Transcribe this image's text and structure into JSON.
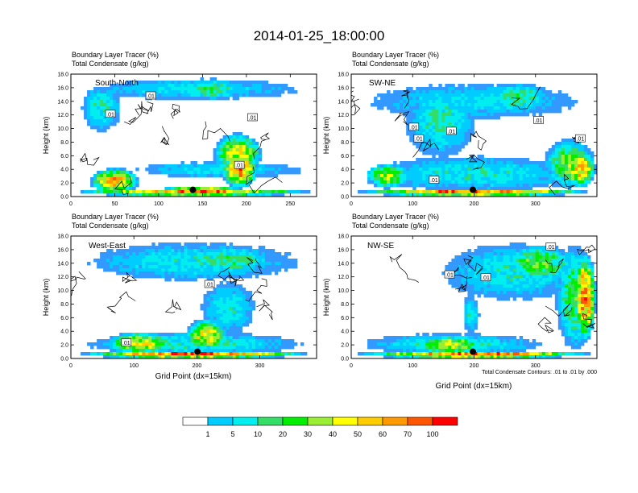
{
  "title": "2014-01-25_18:00:00",
  "colors": [
    "#ffffff",
    "#3399ff",
    "#00ccff",
    "#00eeee",
    "#33dd66",
    "#00ee00",
    "#99ee33",
    "#ffff00",
    "#ffcc00",
    "#ff9900",
    "#ff5500",
    "#ff0000"
  ],
  "contour_color": "#000000",
  "marker_color": "#000000",
  "chart_data": [
    {
      "type": "heatmap",
      "id": "south-north",
      "subtitle_1": "Boundary Layer Tracer   (%)",
      "subtitle_2": "Total Condensate   (g/kg)",
      "panel_label": "South-North",
      "ylabel": "Height (km)",
      "xlabel": "",
      "xlim": [
        0,
        280
      ],
      "ylim": [
        0,
        18
      ],
      "xticks": [
        "0",
        "50",
        "100",
        "150",
        "200",
        "250"
      ],
      "xtick_values": [
        0,
        50,
        100,
        150,
        200,
        250
      ],
      "yticks": [
        "0.0",
        "2.0",
        "4.0",
        "6.0",
        "8.0",
        "10.0",
        "12.0",
        "14.0",
        "16.0",
        "18.0"
      ],
      "contour_labels": [
        {
          "text": ".01",
          "x": 91,
          "y": 14.8
        },
        {
          "text": ".01",
          "x": 45,
          "y": 12.1
        },
        {
          "text": ".01",
          "x": 207,
          "y": 11.6
        },
        {
          "text": ".01",
          "x": 192,
          "y": 4.6
        }
      ],
      "marker": {
        "x": 139,
        "y": 1.0
      },
      "blobs": [
        {
          "x": 0,
          "y": 14,
          "w": 280,
          "h": 3.5,
          "v": 3.2
        },
        {
          "x": 110,
          "y": 14,
          "w": 95,
          "h": 3.5,
          "v": 4.6
        },
        {
          "x": 10,
          "y": 9,
          "w": 50,
          "h": 8,
          "v": 3.8
        },
        {
          "x": 60,
          "y": 2.5,
          "w": 220,
          "h": 2.8,
          "v": 3.4
        },
        {
          "x": 160,
          "y": 3,
          "w": 60,
          "h": 6.5,
          "v": 7.2
        },
        {
          "x": 170,
          "y": 1,
          "w": 45,
          "h": 6,
          "v": 9.2
        },
        {
          "x": 20,
          "y": 0.3,
          "w": 60,
          "h": 4,
          "v": 8.5
        },
        {
          "x": 0,
          "y": 0,
          "w": 280,
          "h": 1.2,
          "v": 9.6
        },
        {
          "x": 90,
          "y": 0,
          "w": 120,
          "h": 1.5,
          "v": 10.5
        }
      ]
    },
    {
      "type": "heatmap",
      "id": "sw-ne",
      "subtitle_1": "Boundary Layer Tracer   (%)",
      "subtitle_2": "Total Condensate   (g/kg)",
      "panel_label": "SW-NE",
      "ylabel": "Height (km)",
      "xlabel": "",
      "xlim": [
        0,
        400
      ],
      "ylim": [
        0,
        18
      ],
      "xticks": [
        "0",
        "100",
        "200",
        "300"
      ],
      "xtick_values": [
        0,
        100,
        200,
        300
      ],
      "yticks": [
        "0.0",
        "2.0",
        "4.0",
        "6.0",
        "8.0",
        "10.0",
        "12.0",
        "14.0",
        "16.0",
        "18.0"
      ],
      "contour_labels": [
        {
          "text": ".01",
          "x": 102,
          "y": 10.2
        },
        {
          "text": ".01",
          "x": 110,
          "y": 8.5
        },
        {
          "text": ".01",
          "x": 163,
          "y": 9.6
        },
        {
          "text": ".01",
          "x": 305,
          "y": 11.2
        },
        {
          "text": ".01",
          "x": 373,
          "y": 8.5
        },
        {
          "text": ".01",
          "x": 135,
          "y": 2.4
        }
      ],
      "marker": {
        "x": 198,
        "y": 1.0
      },
      "blobs": [
        {
          "x": 0,
          "y": 11,
          "w": 400,
          "h": 6,
          "v": 3.2
        },
        {
          "x": 80,
          "y": 5,
          "w": 130,
          "h": 12,
          "v": 4.0
        },
        {
          "x": 210,
          "y": 12,
          "w": 120,
          "h": 5,
          "v": 4.5
        },
        {
          "x": 0,
          "y": 0.3,
          "w": 400,
          "h": 6,
          "v": 3.6
        },
        {
          "x": 310,
          "y": 0.8,
          "w": 90,
          "h": 8,
          "v": 5.8
        },
        {
          "x": 345,
          "y": 1,
          "w": 55,
          "h": 6,
          "v": 8.4
        },
        {
          "x": 20,
          "y": 1,
          "w": 80,
          "h": 4,
          "v": 6.5
        },
        {
          "x": 0,
          "y": 0,
          "w": 400,
          "h": 1.2,
          "v": 10.2
        }
      ]
    },
    {
      "type": "heatmap",
      "id": "west-east",
      "subtitle_1": "Boundary Layer Tracer   (%)",
      "subtitle_2": "Total Condensate   (g/kg)",
      "panel_label": "West-East",
      "ylabel": "Height (km)",
      "xlabel": "Grid Point (dx=15km)",
      "xlim": [
        0,
        390
      ],
      "ylim": [
        0,
        18
      ],
      "xticks": [
        "0",
        "100",
        "200",
        "300"
      ],
      "xtick_values": [
        0,
        100,
        200,
        300
      ],
      "yticks": [
        "0.0",
        "2.0",
        "4.0",
        "6.0",
        "8.0",
        "10.0",
        "12.0",
        "14.0",
        "16.0",
        "18.0"
      ],
      "contour_labels": [
        {
          "text": ".01",
          "x": 220,
          "y": 10.9
        },
        {
          "text": ".01",
          "x": 88,
          "y": 2.3
        }
      ],
      "marker": {
        "x": 201,
        "y": 1.0
      },
      "blobs": [
        {
          "x": 0,
          "y": 11,
          "w": 390,
          "h": 6.5,
          "v": 3.4
        },
        {
          "x": 160,
          "y": 12,
          "w": 180,
          "h": 5,
          "v": 4.3
        },
        {
          "x": 200,
          "y": 3,
          "w": 100,
          "h": 9,
          "v": 3.6
        },
        {
          "x": 0,
          "y": 0.3,
          "w": 390,
          "h": 3.8,
          "v": 3.8
        },
        {
          "x": 50,
          "y": 0.5,
          "w": 120,
          "h": 3.5,
          "v": 7.4
        },
        {
          "x": 180,
          "y": 1,
          "w": 70,
          "h": 5,
          "v": 8.0
        },
        {
          "x": 0,
          "y": 0,
          "w": 390,
          "h": 1.2,
          "v": 10.2
        }
      ]
    },
    {
      "type": "heatmap",
      "id": "nw-se",
      "subtitle_1": "Boundary Layer Tracer   (%)",
      "subtitle_2": "Total Condensate   (g/kg)",
      "panel_label": "NW-SE",
      "ylabel": "Height (km)",
      "xlabel": "Grid Point (dx=15km)",
      "xlim": [
        0,
        400
      ],
      "ylim": [
        0,
        18
      ],
      "xticks": [
        "0",
        "100",
        "200",
        "300"
      ],
      "xtick_values": [
        0,
        100,
        200,
        300
      ],
      "yticks": [
        "0.0",
        "2.0",
        "4.0",
        "6.0",
        "8.0",
        "10.0",
        "12.0",
        "14.0",
        "16.0",
        "18.0"
      ],
      "contour_labels": [
        {
          "text": ".01",
          "x": 325,
          "y": 16.4
        },
        {
          "text": ".01",
          "x": 160,
          "y": 12.3
        },
        {
          "text": ".01",
          "x": 219,
          "y": 11.9
        }
      ],
      "marker": {
        "x": 198,
        "y": 1.0
      },
      "blobs": [
        {
          "x": 130,
          "y": 8,
          "w": 270,
          "h": 9.5,
          "v": 3.6
        },
        {
          "x": 240,
          "y": 11,
          "w": 130,
          "h": 6,
          "v": 5.6
        },
        {
          "x": 330,
          "y": 0.5,
          "w": 70,
          "h": 17,
          "v": 5.2
        },
        {
          "x": 360,
          "y": 2,
          "w": 40,
          "h": 14,
          "v": 9.6
        },
        {
          "x": 180,
          "y": 3,
          "w": 30,
          "h": 7,
          "v": 3.4
        },
        {
          "x": 0,
          "y": 0.3,
          "w": 330,
          "h": 3.6,
          "v": 3.8
        },
        {
          "x": 100,
          "y": 0.5,
          "w": 120,
          "h": 3,
          "v": 7.0
        },
        {
          "x": 0,
          "y": 0,
          "w": 400,
          "h": 1.2,
          "v": 10.0
        }
      ]
    }
  ],
  "footnote": "Total Condensate Contours: .01 to .01 by .000",
  "colorbar": {
    "labels": [
      "1",
      "5",
      "10",
      "20",
      "30",
      "40",
      "50",
      "60",
      "70",
      "100"
    ]
  }
}
